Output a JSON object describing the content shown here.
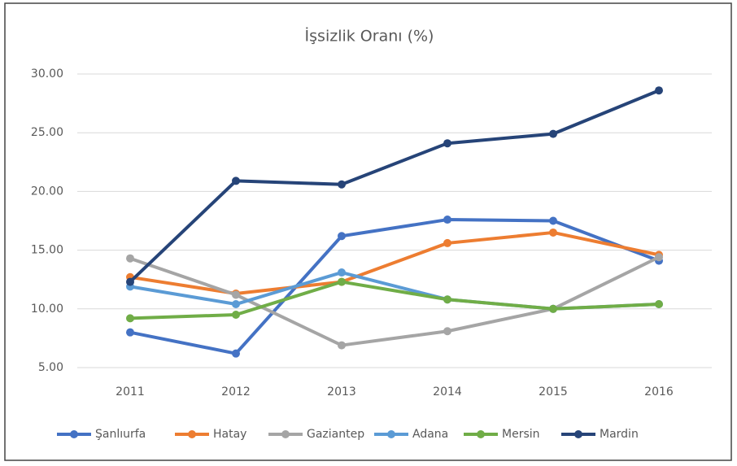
{
  "chart_data": {
    "type": "line",
    "title": "İşsizlik Oranı (%)",
    "categories": [
      "2011",
      "2012",
      "2013",
      "2014",
      "2015",
      "2016"
    ],
    "series": [
      {
        "name": "Şanlıurfa",
        "color": "#4472c4",
        "values": [
          8.0,
          6.2,
          16.2,
          17.6,
          17.5,
          14.1
        ]
      },
      {
        "name": "Hatay",
        "color": "#ed7d31",
        "values": [
          12.7,
          11.3,
          12.3,
          15.6,
          16.5,
          14.6
        ]
      },
      {
        "name": "Gaziantep",
        "color": "#a5a5a5",
        "values": [
          14.3,
          11.2,
          6.9,
          8.1,
          10.0,
          14.4
        ]
      },
      {
        "name": "Adana",
        "color": "#5b9bd5",
        "values": [
          11.9,
          10.4,
          13.1,
          10.8,
          10.0,
          10.4
        ]
      },
      {
        "name": "Mersin",
        "color": "#70ad47",
        "values": [
          9.2,
          9.5,
          12.3,
          10.8,
          10.0,
          10.4
        ]
      },
      {
        "name": "Mardin",
        "color": "#264478",
        "values": [
          12.3,
          20.9,
          20.6,
          24.1,
          24.9,
          28.6
        ]
      }
    ],
    "ylim": [
      5,
      30
    ],
    "yticks": [
      {
        "value": 5,
        "label": "5.00"
      },
      {
        "value": 10,
        "label": "10.00"
      },
      {
        "value": 15,
        "label": "15.00"
      },
      {
        "value": 20,
        "label": "20.00"
      },
      {
        "value": 25,
        "label": "25.00"
      },
      {
        "value": 30,
        "label": "30.00"
      }
    ],
    "grid": true,
    "legend": "bottom"
  }
}
